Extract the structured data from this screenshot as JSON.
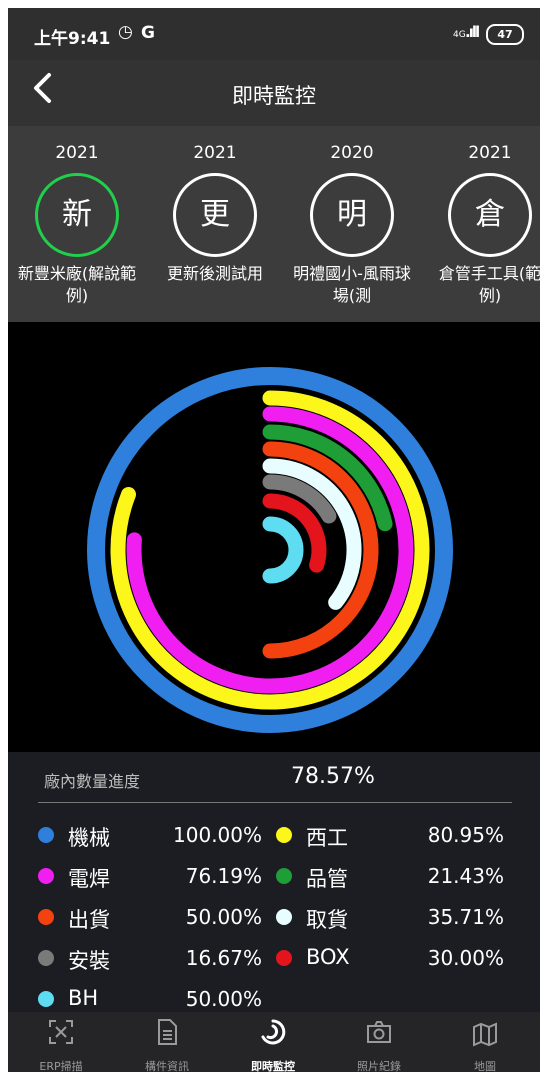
{
  "status_bar": {
    "time": "上午9:41",
    "alarm_icon": "alarm-clock-icon",
    "g_icon": "G",
    "network": "4G",
    "battery": "47"
  },
  "header": {
    "back_icon": "chevron-left-icon",
    "title": "即時監控"
  },
  "projects": [
    {
      "year": "2021",
      "glyph": "新",
      "name": "新豐米廠(解說範例)",
      "selected": true
    },
    {
      "year": "2021",
      "glyph": "更",
      "name": "更新後測試用",
      "selected": false
    },
    {
      "year": "2020",
      "glyph": "明",
      "name": "明禮國小-風雨球場(測",
      "selected": false
    },
    {
      "year": "2021",
      "glyph": "倉",
      "name": "倉管手工具(範例)",
      "selected": false
    }
  ],
  "summary": {
    "label": "廠內數量進度",
    "value": "78.57%"
  },
  "chart_data": {
    "type": "radial-bar",
    "series": [
      {
        "name": "機械",
        "value": 100.0,
        "color": "#2f7fdc"
      },
      {
        "name": "西工",
        "value": 80.95,
        "color": "#fcf61a"
      },
      {
        "name": "電焊",
        "value": 76.19,
        "color": "#f01ef0"
      },
      {
        "name": "品管",
        "value": 21.43,
        "color": "#1f9d37"
      },
      {
        "name": "出貨",
        "value": 50.0,
        "color": "#f3420f"
      },
      {
        "name": "取貨",
        "value": 35.71,
        "color": "#e7fdff"
      },
      {
        "name": "安裝",
        "value": 16.67,
        "color": "#7a7a7a"
      },
      {
        "name": "BOX",
        "value": 30.0,
        "color": "#e3141b"
      },
      {
        "name": "BH",
        "value": 50.0,
        "color": "#5ddcf2"
      }
    ]
  },
  "legend": [
    {
      "name": "機械",
      "pct": "100.00%",
      "color": "#2f7fdc"
    },
    {
      "name": "西工",
      "pct": "80.95%",
      "color": "#fcf61a"
    },
    {
      "name": "電焊",
      "pct": "76.19%",
      "color": "#f01ef0"
    },
    {
      "name": "品管",
      "pct": "21.43%",
      "color": "#1f9d37"
    },
    {
      "name": "出貨",
      "pct": "50.00%",
      "color": "#f3420f"
    },
    {
      "name": "取貨",
      "pct": "35.71%",
      "color": "#e7fdff"
    },
    {
      "name": "安裝",
      "pct": "16.67%",
      "color": "#7a7a7a"
    },
    {
      "name": "BOX",
      "pct": "30.00%",
      "color": "#e3141b"
    },
    {
      "name": "BH",
      "pct": "50.00%",
      "color": "#5ddcf2"
    }
  ],
  "nav": [
    {
      "label": "ERP掃描",
      "icon": "scan-icon",
      "active": false
    },
    {
      "label": "構件資訊",
      "icon": "document-icon",
      "active": false
    },
    {
      "label": "即時監控",
      "icon": "monitor-rings-icon",
      "active": true
    },
    {
      "label": "照片紀錄",
      "icon": "camera-icon",
      "active": false
    },
    {
      "label": "地圖",
      "icon": "map-icon",
      "active": false
    }
  ],
  "colors": {
    "selected_ring": "#21d04a"
  }
}
